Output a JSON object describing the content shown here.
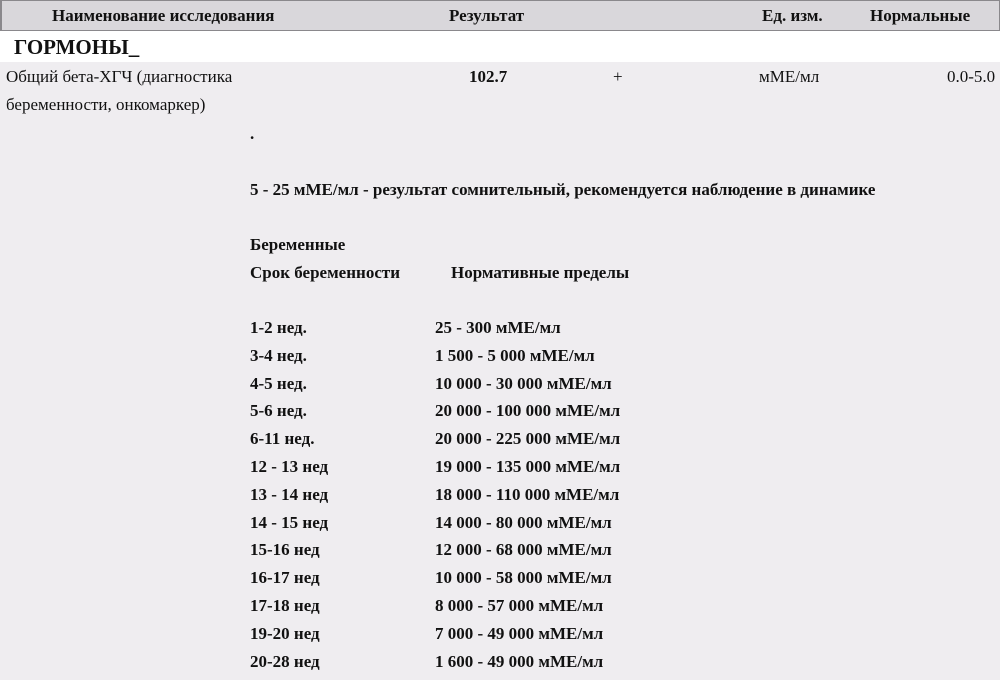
{
  "header": {
    "name_col": "Наименование исследования",
    "result_col": "Результат",
    "unit_col": "Ед. изм.",
    "norm_col": "Нормальные"
  },
  "section": {
    "title": "ГОРМОНЫ_"
  },
  "test": {
    "name_line1": "Общий бета-ХГЧ (диагностика",
    "name_line2": "беременности, онкомаркер)",
    "result": "102.7",
    "flag": "+",
    "unit": "мМЕ/мл",
    "norm": "0.0-5.0"
  },
  "comment": {
    "dot": ".",
    "doubtful": "5 - 25 мМЕ/мл - результат сомнительный, рекомендуется наблюдение в динамике",
    "pregnant_title": "Беременные",
    "col_term": "Срок беременности",
    "col_limits": "Нормативные пределы"
  },
  "pregnancy_table": [
    {
      "term": "1-2 нед.",
      "range": "25 - 300 мМЕ/мл"
    },
    {
      "term": "3-4 нед.",
      "range": "1 500 - 5 000 мМЕ/мл"
    },
    {
      "term": "4-5 нед.",
      "range": "10 000 - 30 000 мМЕ/мл"
    },
    {
      "term": "5-6 нед.",
      "range": "20 000 - 100 000 мМЕ/мл"
    },
    {
      "term": "6-11 нед.",
      "range": "20 000 - 225 000 мМЕ/мл"
    },
    {
      "term": "12 - 13 нед",
      "range": "19 000 - 135 000 мМЕ/мл"
    },
    {
      "term": "13 - 14 нед",
      "range": "18 000 - 110 000 мМЕ/мл"
    },
    {
      "term": "14 - 15 нед",
      "range": "14 000 - 80 000 мМЕ/мл"
    },
    {
      "term": "15-16 нед",
      "range": "12 000 - 68 000 мМЕ/мл"
    },
    {
      "term": "16-17 нед",
      "range": "10 000 - 58 000 мМЕ/мл"
    },
    {
      "term": "17-18 нед",
      "range": "8 000 - 57 000 мМЕ/мл"
    },
    {
      "term": "19-20 нед",
      "range": "7 000 - 49 000 мМЕ/мл"
    },
    {
      "term": "20-28 нед",
      "range": "1 600 - 49 000 мМЕ/мл"
    }
  ]
}
